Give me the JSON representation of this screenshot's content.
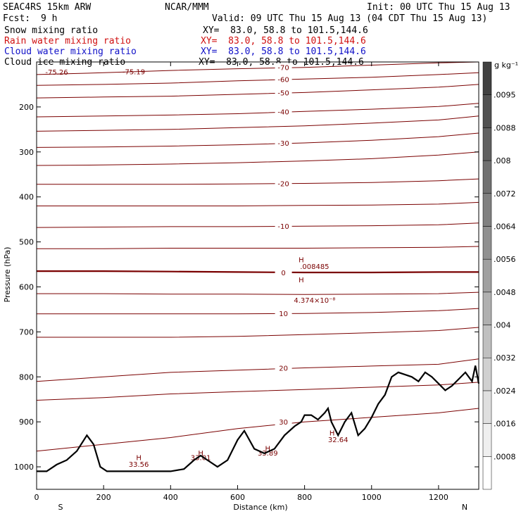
{
  "header": {
    "model": "SEAC4RS 15km ARW",
    "org": "NCAR/MMM",
    "init": "Init: 00 UTC Thu 15 Aug 13",
    "fcst_label": "Fcst:",
    "fcst_value": "9 h",
    "valid": "Valid: 09 UTC Thu 15 Aug 13 (04 CDT Thu 15 Aug 13)",
    "fields": [
      {
        "name": "Snow mixing ratio",
        "xy": "XY=  83.0, 58.8 to 101.5,144.6",
        "color": "#000000"
      },
      {
        "name": "Rain water mixing ratio",
        "xy": "XY=  83.0, 58.8 to 101.5,144.6",
        "color": "#d01010"
      },
      {
        "name": "Cloud water mixing ratio",
        "xy": "XY=  83.0, 58.8 to 101.5,144.6",
        "color": "#1010c8"
      },
      {
        "name": "Cloud ice mixing ratio",
        "xy": "XY=  83.0, 58.8 to 101.5,144.6",
        "color": "#000000"
      }
    ]
  },
  "chart_data": {
    "type": "line",
    "xlabel": "Distance (km)",
    "ylabel": "Pressure (hPa)",
    "xlim": [
      0,
      1320
    ],
    "ylim": [
      1050,
      100
    ],
    "x_ticks": [
      0,
      200,
      400,
      600,
      800,
      1000,
      1200
    ],
    "y_ticks": [
      200,
      300,
      400,
      500,
      600,
      700,
      800,
      900,
      1000
    ],
    "x_end_labels": {
      "left": "S",
      "right": "N"
    },
    "colorbar": {
      "unit": "g kg⁻¹",
      "ticks": [
        ".0008",
        ".0016",
        ".0024",
        ".0032",
        ".004",
        ".0048",
        ".0056",
        ".0064",
        ".0072",
        ".008",
        ".0088",
        ".0095"
      ]
    },
    "temperature_contours": [
      {
        "value": -70,
        "label": "-70",
        "x": [
          0,
          200,
          400,
          600,
          800,
          1000,
          1200,
          1320
        ],
        "p": [
          128,
          124,
          119,
          115,
          112,
          107,
          102,
          100
        ]
      },
      {
        "value": -60,
        "label": "-60",
        "x": [
          0,
          200,
          400,
          600,
          800,
          1000,
          1200,
          1320
        ],
        "p": [
          152,
          150,
          147,
          142,
          138,
          134,
          128,
          124
        ]
      },
      {
        "value": -50,
        "label": "-50",
        "x": [
          0,
          200,
          400,
          600,
          800,
          1000,
          1200,
          1320
        ],
        "p": [
          180,
          178,
          176,
          172,
          168,
          162,
          156,
          150
        ]
      },
      {
        "value": -40,
        "label": "-40",
        "x": [
          0,
          200,
          400,
          600,
          800,
          1000,
          1200,
          1320
        ],
        "p": [
          222,
          220,
          218,
          215,
          210,
          205,
          199,
          192
        ]
      },
      {
        "value": -35,
        "label": "",
        "x": [
          0,
          200,
          400,
          600,
          800,
          1000,
          1200,
          1320
        ],
        "p": [
          254,
          252,
          250,
          246,
          242,
          236,
          229,
          220
        ]
      },
      {
        "value": -30,
        "label": "-30",
        "x": [
          0,
          200,
          400,
          600,
          800,
          1000,
          1200,
          1320
        ],
        "p": [
          290,
          289,
          287,
          284,
          280,
          274,
          266,
          258
        ]
      },
      {
        "value": -25,
        "label": "",
        "x": [
          0,
          200,
          400,
          600,
          800,
          1000,
          1200,
          1320
        ],
        "p": [
          330,
          329,
          327,
          324,
          320,
          315,
          307,
          300
        ]
      },
      {
        "value": -20,
        "label": "-20",
        "x": [
          0,
          200,
          400,
          600,
          800,
          1000,
          1200,
          1320
        ],
        "p": [
          372,
          372,
          372,
          371,
          370,
          368,
          364,
          360
        ]
      },
      {
        "value": -15,
        "label": "",
        "x": [
          0,
          200,
          400,
          600,
          800,
          1000,
          1200,
          1320
        ],
        "p": [
          420,
          420,
          420,
          420,
          419,
          418,
          416,
          412
        ]
      },
      {
        "value": -10,
        "label": "-10",
        "x": [
          0,
          200,
          400,
          600,
          800,
          1000,
          1200,
          1320
        ],
        "p": [
          468,
          467,
          466,
          466,
          465,
          464,
          462,
          458
        ]
      },
      {
        "value": -5,
        "label": "",
        "x": [
          0,
          200,
          400,
          600,
          800,
          1000,
          1200,
          1320
        ],
        "p": [
          515,
          515,
          514,
          514,
          514,
          513,
          512,
          510
        ]
      },
      {
        "value": 0,
        "label": "0",
        "x": [
          0,
          200,
          400,
          600,
          800,
          1000,
          1200,
          1320
        ],
        "p": [
          565,
          565,
          566,
          567,
          568,
          568,
          567,
          567
        ]
      },
      {
        "value": 5,
        "label": "",
        "x": [
          0,
          200,
          400,
          600,
          800,
          1000,
          1200,
          1320
        ],
        "p": [
          615,
          615,
          616,
          616,
          617,
          616,
          615,
          612
        ]
      },
      {
        "value": 10,
        "label": "10",
        "x": [
          0,
          200,
          400,
          600,
          800,
          1000,
          1200,
          1320
        ],
        "p": [
          660,
          660,
          660,
          660,
          659,
          657,
          653,
          648
        ]
      },
      {
        "value": 15,
        "label": "",
        "x": [
          0,
          200,
          400,
          600,
          800,
          1000,
          1200,
          1320
        ],
        "p": [
          712,
          712,
          712,
          710,
          706,
          702,
          697,
          690
        ]
      },
      {
        "value": 20,
        "label": "20",
        "x": [
          0,
          200,
          400,
          600,
          800,
          1000,
          1200,
          1320
        ],
        "p": [
          810,
          800,
          790,
          785,
          780,
          776,
          772,
          760
        ]
      },
      {
        "value": 25,
        "label": "",
        "x": [
          0,
          200,
          400,
          600,
          800,
          1000,
          1200,
          1320
        ],
        "p": [
          852,
          846,
          838,
          833,
          828,
          823,
          818,
          812
        ]
      },
      {
        "value": 30,
        "label": "30",
        "x": [
          0,
          200,
          400,
          600,
          800,
          1000,
          1200,
          1320
        ],
        "p": [
          965,
          950,
          935,
          915,
          900,
          890,
          880,
          870
        ]
      }
    ],
    "contour_labels": [
      {
        "text": "-75.26",
        "x": 60,
        "p": 128
      },
      {
        "text": "-75.19",
        "x": 290,
        "p": 127
      },
      {
        "text": "H",
        "x": 790,
        "p": 590
      },
      {
        "text": "4.374×10⁻⁸",
        "x": 830,
        "p": 635
      },
      {
        "text": "H",
        "x": 790,
        "p": 545
      },
      {
        "text": ".008485",
        "x": 830,
        "p": 560
      },
      {
        "text": "H",
        "x": 305,
        "p": 985
      },
      {
        "text": "33.56",
        "x": 305,
        "p": 1000
      },
      {
        "text": "H",
        "x": 490,
        "p": 975
      },
      {
        "text": "33.01",
        "x": 490,
        "p": 985
      },
      {
        "text": "H",
        "x": 690,
        "p": 965
      },
      {
        "text": "33.89",
        "x": 690,
        "p": 975
      },
      {
        "text": "H",
        "x": 882,
        "p": 930
      },
      {
        "text": "32.64",
        "x": 900,
        "p": 945
      }
    ],
    "terrain": {
      "x": [
        0,
        30,
        60,
        90,
        120,
        150,
        170,
        190,
        210,
        250,
        300,
        350,
        400,
        440,
        470,
        490,
        510,
        540,
        570,
        600,
        620,
        650,
        680,
        710,
        740,
        770,
        790,
        800,
        820,
        840,
        860,
        870,
        880,
        900,
        920,
        940,
        960,
        980,
        1000,
        1020,
        1040,
        1060,
        1080,
        1100,
        1120,
        1140,
        1160,
        1180,
        1200,
        1220,
        1240,
        1260,
        1280,
        1300,
        1310,
        1320
      ],
      "p": [
        1010,
        1010,
        995,
        985,
        965,
        930,
        950,
        1000,
        1010,
        1010,
        1010,
        1010,
        1010,
        1005,
        985,
        975,
        985,
        1000,
        985,
        940,
        920,
        960,
        970,
        960,
        930,
        910,
        900,
        885,
        885,
        895,
        880,
        870,
        900,
        930,
        900,
        880,
        930,
        915,
        890,
        860,
        840,
        800,
        790,
        795,
        800,
        810,
        790,
        800,
        815,
        830,
        820,
        805,
        790,
        810,
        775,
        815
      ]
    }
  }
}
